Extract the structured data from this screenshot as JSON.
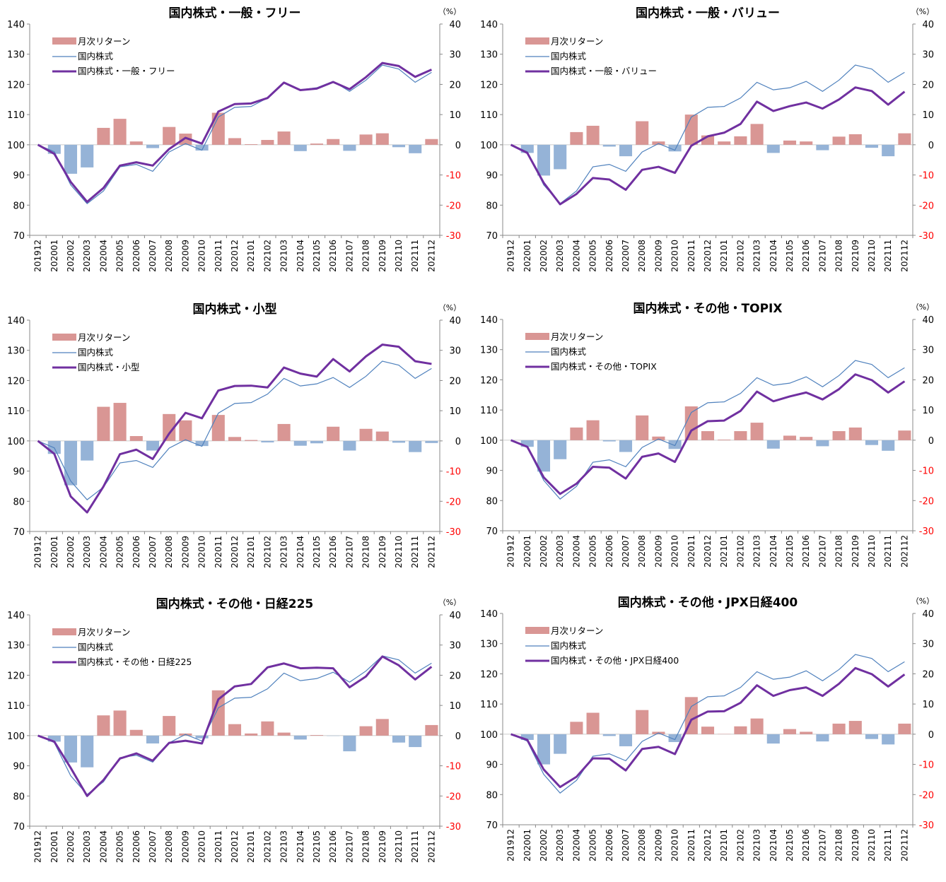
{
  "categories": [
    "201912",
    "202001",
    "202002",
    "202003",
    "202004",
    "202005",
    "202006",
    "202007",
    "202008",
    "202009",
    "202010",
    "202011",
    "202012",
    "202101",
    "202102",
    "202103",
    "202104",
    "202105",
    "202106",
    "202107",
    "202108",
    "202109",
    "202110",
    "202111",
    "202112"
  ],
  "left_axis_ticks": [
    "140",
    "130",
    "120",
    "110",
    "100",
    "90",
    "80",
    "70"
  ],
  "right_axis_ticks": [
    "40",
    "30",
    "20",
    "10",
    "0",
    "-10",
    "-20",
    "-30"
  ],
  "right_axis_unit": "（%）",
  "legend_bar_label": "月次リターン",
  "legend_base_label": "国内株式",
  "colors": {
    "positive_bar": "#d99694",
    "negative_bar": "#95b3d7",
    "base_line": "#4f81bd",
    "fund_line": "#7030a0",
    "negative_tick": "#ff0000"
  },
  "base_series": [
    100,
    97.7,
    86.7,
    80.5,
    84.7,
    92.7,
    93.5,
    91.2,
    97.6,
    100.4,
    98.2,
    109.2,
    112.4,
    112.7,
    115.5,
    120.7,
    118.2,
    118.9,
    121.0,
    117.7,
    121.4,
    126.4,
    125.1,
    120.7,
    124.0
  ],
  "chart_data": [
    {
      "type": "bar+line",
      "title": "国内株式・一般・フリー",
      "ylim_left": [
        70,
        140
      ],
      "ylim_right": [
        -30,
        40
      ],
      "categories_ref": "categories",
      "series": [
        {
          "name": "月次リターン",
          "axis": "right",
          "values": [
            0,
            -3.0,
            -9.6,
            -7.5,
            5.6,
            8.6,
            1.1,
            -1.1,
            5.9,
            3.7,
            -1.9,
            10.6,
            2.2,
            0.2,
            1.6,
            4.4,
            -2.1,
            0.4,
            1.9,
            -2.0,
            3.4,
            3.8,
            -0.8,
            -2.8,
            1.9
          ]
        },
        {
          "name": "国内株式",
          "axis": "left",
          "values_ref": "base_series"
        },
        {
          "name": "国内株式・一般・フリー",
          "axis": "left",
          "values": [
            100,
            97,
            87.7,
            81.1,
            85.7,
            93.1,
            94.2,
            93.1,
            98.6,
            102.3,
            100.4,
            111.0,
            113.5,
            113.7,
            115.5,
            120.6,
            118.1,
            118.6,
            120.8,
            118.4,
            122.4,
            127.1,
            126.1,
            122.5,
            124.9
          ]
        }
      ]
    },
    {
      "type": "bar+line",
      "title": "国内株式・一般・バリュー",
      "ylim_left": [
        70,
        140
      ],
      "ylim_right": [
        -30,
        40
      ],
      "categories_ref": "categories",
      "series": [
        {
          "name": "月次リターン",
          "axis": "right",
          "values": [
            0,
            -2.7,
            -10.2,
            -8.1,
            4.2,
            6.3,
            -0.6,
            -3.8,
            7.8,
            1.1,
            -2.2,
            10.0,
            3.1,
            1.1,
            2.8,
            6.9,
            -2.7,
            1.4,
            1.1,
            -1.8,
            2.7,
            3.5,
            -1.0,
            -3.8,
            3.8
          ]
        },
        {
          "name": "国内株式",
          "axis": "left",
          "values_ref": "base_series"
        },
        {
          "name": "国内株式・一般・バリュー",
          "axis": "left",
          "values": [
            100,
            97.3,
            87.4,
            80.3,
            83.7,
            89.0,
            88.5,
            85.1,
            91.7,
            92.7,
            90.7,
            99.7,
            102.8,
            104.0,
            106.9,
            114.3,
            111.2,
            112.8,
            114.0,
            112.0,
            115.0,
            119.0,
            117.8,
            113.3,
            117.6
          ]
        }
      ]
    },
    {
      "type": "bar+line",
      "title": "国内株式・小型",
      "ylim_left": [
        70,
        140
      ],
      "ylim_right": [
        -30,
        40
      ],
      "categories_ref": "categories",
      "series": [
        {
          "name": "月次リターン",
          "axis": "right",
          "values": [
            0,
            -4.3,
            -14.7,
            -6.5,
            11.3,
            12.6,
            1.6,
            -3.2,
            8.9,
            6.8,
            -1.7,
            8.6,
            1.3,
            0.3,
            -0.5,
            5.6,
            -1.6,
            -0.8,
            4.7,
            -3.2,
            4.0,
            3.1,
            -0.6,
            -3.7,
            -0.7
          ]
        },
        {
          "name": "国内株式",
          "axis": "left",
          "values_ref": "base_series"
        },
        {
          "name": "国内株式・小型",
          "axis": "left",
          "values": [
            100,
            95.7,
            81.6,
            76.3,
            84.9,
            95.6,
            97.1,
            94.0,
            102.4,
            109.3,
            107.5,
            116.7,
            118.2,
            118.3,
            117.7,
            124.3,
            122.3,
            121.3,
            127.1,
            123.0,
            128.0,
            131.9,
            131.2,
            126.4,
            125.5
          ]
        }
      ]
    },
    {
      "type": "bar+line",
      "title": "国内株式・その他・TOPIX",
      "ylim_left": [
        70,
        140
      ],
      "ylim_right": [
        -30,
        40
      ],
      "categories_ref": "categories",
      "series": [
        {
          "name": "月次リターン",
          "axis": "right",
          "values": [
            0,
            -2.2,
            -10.4,
            -6.3,
            4.2,
            6.6,
            -0.4,
            -3.9,
            8.2,
            1.2,
            -2.9,
            11.2,
            3.0,
            0.2,
            3.0,
            5.8,
            -2.8,
            1.5,
            1.1,
            -2.0,
            3.0,
            4.2,
            -1.6,
            -3.5,
            3.2
          ]
        },
        {
          "name": "国内株式",
          "axis": "left",
          "values_ref": "base_series"
        },
        {
          "name": "国内株式・その他・TOPIX",
          "axis": "left",
          "values": [
            100,
            97.8,
            87.7,
            82.2,
            85.6,
            91.2,
            90.9,
            87.3,
            94.5,
            95.6,
            92.8,
            103.2,
            106.3,
            106.5,
            109.7,
            116.1,
            112.9,
            114.5,
            115.8,
            113.5,
            116.9,
            121.8,
            119.9,
            115.8,
            119.5
          ]
        }
      ]
    },
    {
      "type": "bar+line",
      "title": "国内株式・その他・日経225",
      "ylim_left": [
        70,
        140
      ],
      "ylim_right": [
        -30,
        40
      ],
      "categories_ref": "categories",
      "series": [
        {
          "name": "月次リターン",
          "axis": "right",
          "values": [
            0,
            -2.0,
            -8.9,
            -10.5,
            6.7,
            8.3,
            1.9,
            -2.6,
            6.5,
            0.7,
            -0.9,
            15.0,
            3.8,
            0.7,
            4.7,
            1.0,
            -1.3,
            0.2,
            -0.1,
            -5.2,
            3.1,
            5.5,
            -2.3,
            -3.8,
            3.5
          ]
        },
        {
          "name": "国内株式",
          "axis": "left",
          "values_ref": "base_series"
        },
        {
          "name": "国内株式・その他・日経225",
          "axis": "left",
          "values": [
            100,
            98.0,
            89.3,
            80.0,
            85.3,
            92.4,
            94.1,
            91.7,
            97.6,
            98.3,
            97.4,
            112.0,
            116.3,
            117.1,
            122.6,
            123.9,
            122.3,
            122.5,
            122.3,
            116.0,
            119.6,
            126.2,
            123.3,
            118.6,
            122.8
          ]
        }
      ]
    },
    {
      "type": "bar+line",
      "title": "国内株式・その他・JPX日経400",
      "ylim_left": [
        70,
        140
      ],
      "ylim_right": [
        -30,
        40
      ],
      "categories_ref": "categories",
      "series": [
        {
          "name": "月次リターン",
          "axis": "right",
          "values": [
            0,
            -1.9,
            -10.0,
            -6.5,
            4.1,
            7.1,
            -0.6,
            -4.0,
            8.0,
            0.8,
            -2.6,
            12.3,
            2.5,
            0.1,
            2.6,
            5.2,
            -3.1,
            1.7,
            0.8,
            -2.4,
            3.5,
            4.4,
            -1.6,
            -3.4,
            3.5
          ]
        },
        {
          "name": "国内株式",
          "axis": "left",
          "values_ref": "base_series"
        },
        {
          "name": "国内株式・その他・JPX日経400",
          "axis": "left",
          "values": [
            100,
            98.1,
            88.3,
            82.5,
            85.9,
            92.0,
            91.9,
            88.0,
            95.1,
            95.8,
            93.4,
            104.8,
            107.5,
            107.6,
            110.4,
            116.2,
            112.7,
            114.6,
            115.5,
            112.7,
            116.7,
            121.9,
            119.9,
            115.8,
            119.8
          ]
        }
      ]
    }
  ]
}
